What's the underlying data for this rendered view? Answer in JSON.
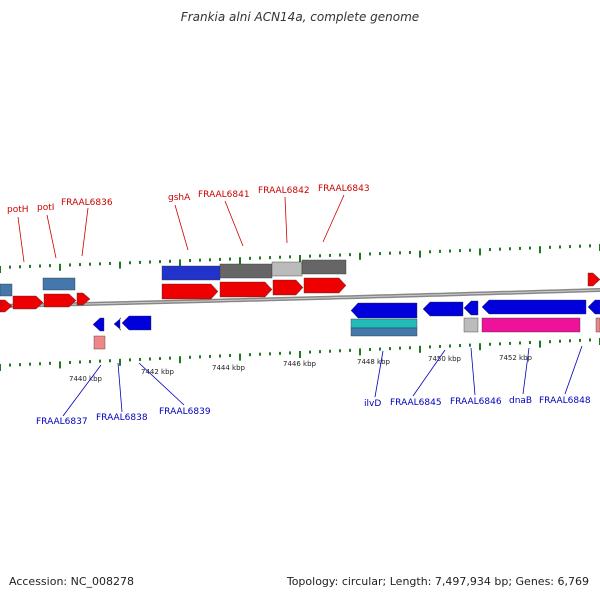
{
  "title": "Frankia alni ACN14a, complete genome",
  "footer": {
    "accession": "Accession: NC_008278",
    "topology": "Topology: circular; Length: 7,497,934 bp; Genes: 6,769"
  },
  "colors": {
    "forward_label": "#cc0000",
    "reverse_label": "#0000bb",
    "forward_cds": "#ee0000",
    "reverse_cds": "#0000dd",
    "gene_blue": "#2233cc",
    "gene_grey_dark": "#666666",
    "gene_grey_light": "#bbbbbb",
    "steel_blue": "#4477aa",
    "teal": "#22bbbb",
    "magenta": "#ee1199",
    "pink": "#ee8888",
    "backbone": "#888888",
    "tick": "#227722"
  },
  "top_labels": [
    "potH",
    "potI",
    "FRAAL6836",
    "gshA",
    "FRAAL6841",
    "FRAAL6842",
    "FRAAL6843"
  ],
  "bottom_labels": [
    "FRAAL6837",
    "FRAAL6838",
    "FRAAL6839",
    "ilvD",
    "FRAAL6845",
    "FRAAL6846",
    "dnaB",
    "FRAAL6848"
  ],
  "ruler_ticks": [
    "7440 kbp",
    "7442 kbp",
    "7444 kbp",
    "7446 kbp",
    "7448 kbp",
    "7450 kbp",
    "7452 kbp"
  ]
}
